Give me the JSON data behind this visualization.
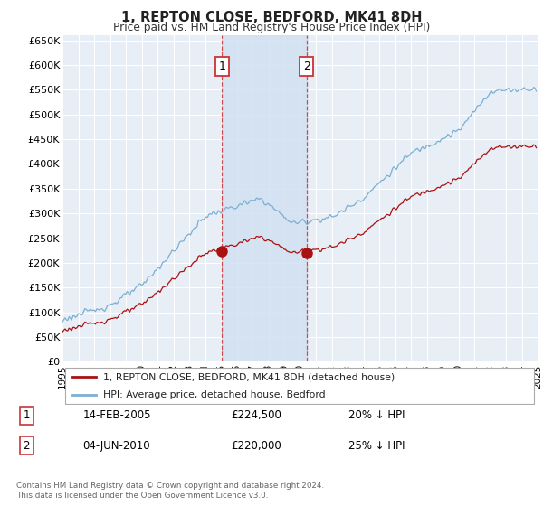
{
  "title": "1, REPTON CLOSE, BEDFORD, MK41 8DH",
  "subtitle": "Price paid vs. HM Land Registry's House Price Index (HPI)",
  "hpi_color": "#7aafd4",
  "price_color": "#aa1111",
  "vline_color": "#cc3333",
  "bg_color": "#e8eef5",
  "grid_color": "#ffffff",
  "shade_color": "#d0dff0",
  "ylim": [
    0,
    660000
  ],
  "ytick_values": [
    0,
    50000,
    100000,
    150000,
    200000,
    250000,
    300000,
    350000,
    400000,
    450000,
    500000,
    550000,
    600000,
    650000
  ],
  "ytick_labels": [
    "£0",
    "£50K",
    "£100K",
    "£150K",
    "£200K",
    "£250K",
    "£300K",
    "£350K",
    "£400K",
    "£450K",
    "£500K",
    "£550K",
    "£600K",
    "£650K"
  ],
  "t1_year": 2005.083,
  "t1_price": 224500,
  "t2_year": 2010.417,
  "t2_price": 220000,
  "transaction1": {
    "date_str": "14-FEB-2005",
    "price": 224500,
    "pct": "20% ↓ HPI"
  },
  "transaction2": {
    "date_str": "04-JUN-2010",
    "price": 220000,
    "pct": "25% ↓ HPI"
  },
  "legend1": "1, REPTON CLOSE, BEDFORD, MK41 8DH (detached house)",
  "legend2": "HPI: Average price, detached house, Bedford",
  "footer": "Contains HM Land Registry data © Crown copyright and database right 2024.\nThis data is licensed under the Open Government Licence v3.0."
}
